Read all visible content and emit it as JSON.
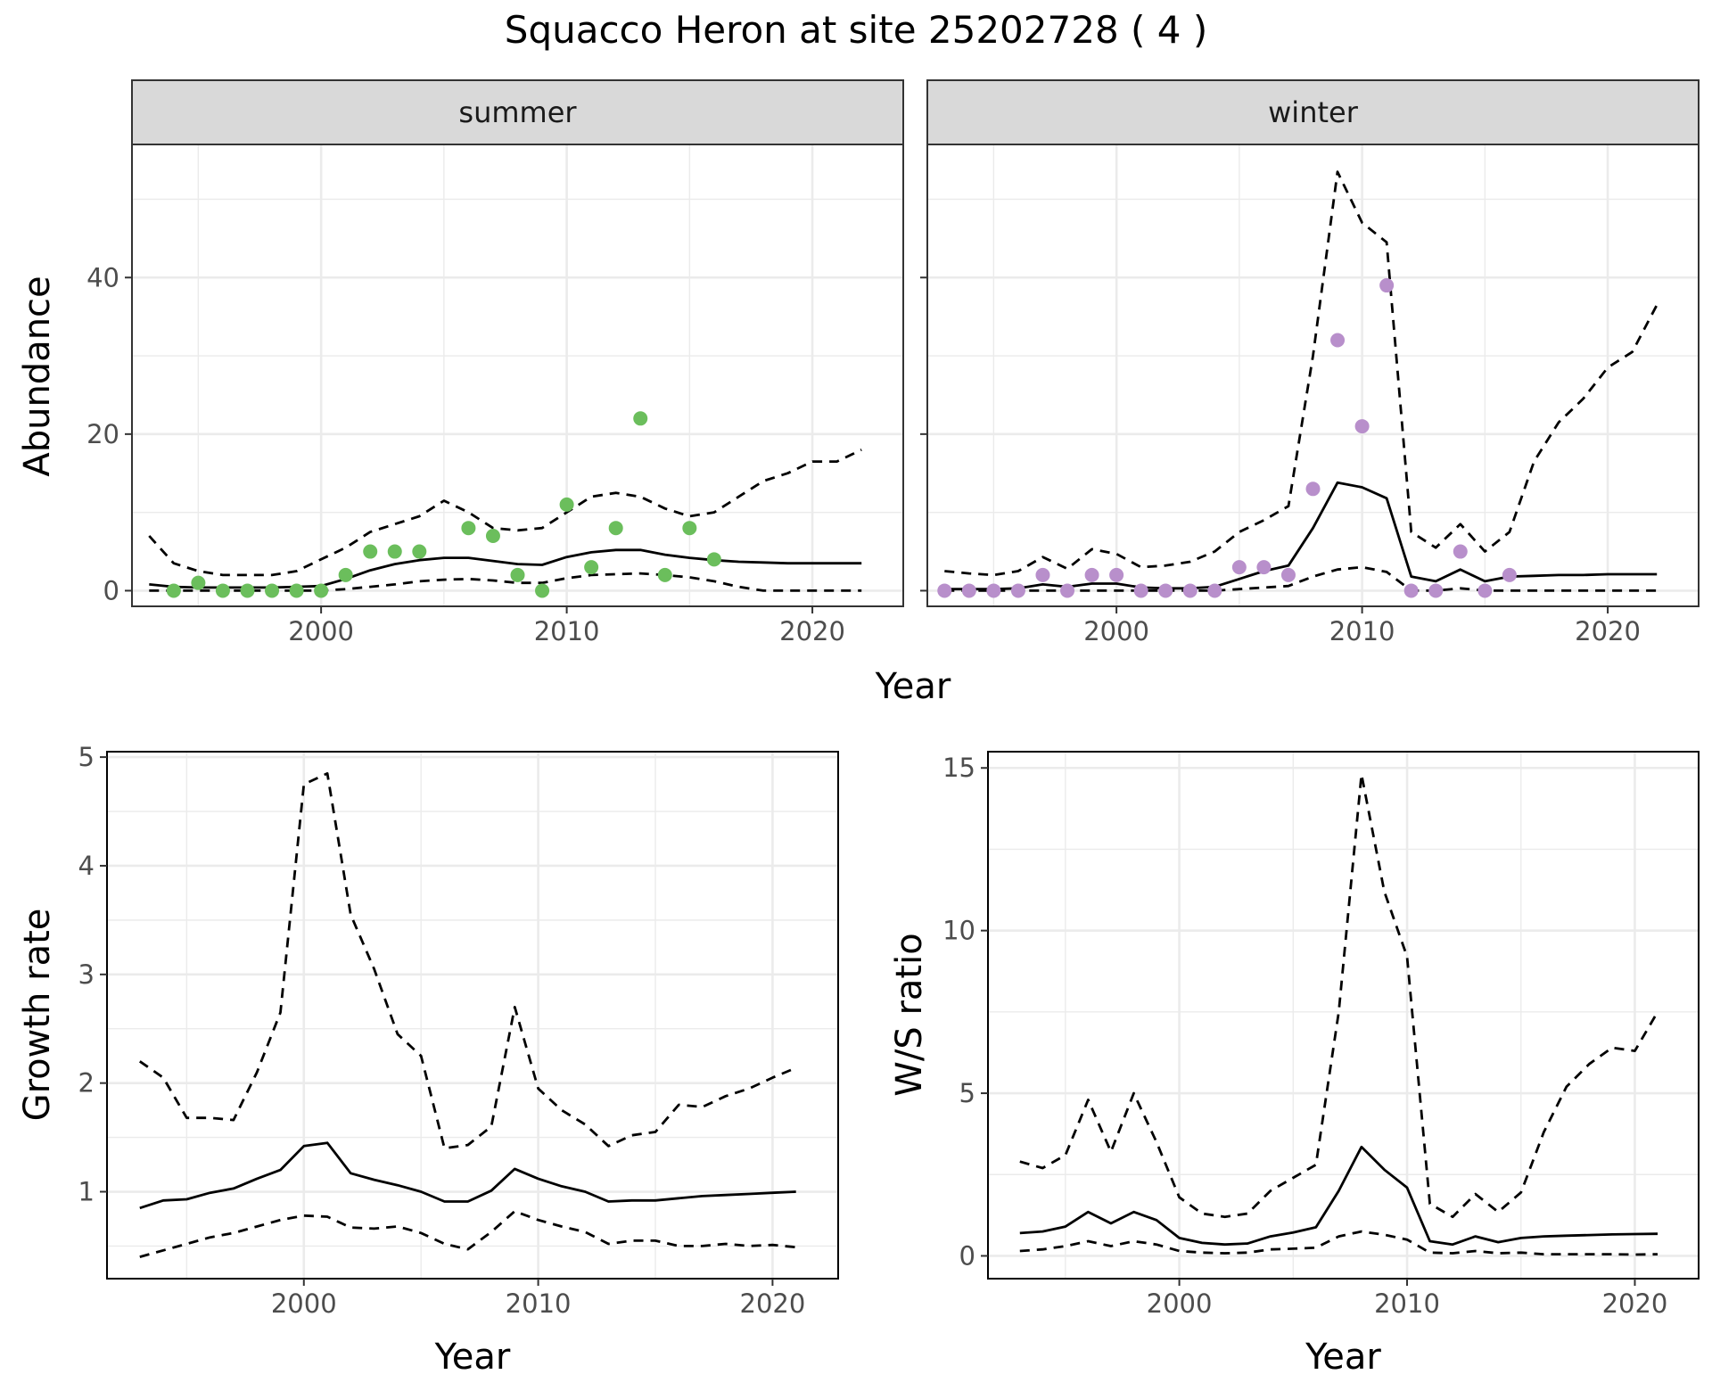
{
  "figure": {
    "title": "Squacco Heron at site 25202728 ( 4 )"
  },
  "colors": {
    "summer_points": "#6BBE5C",
    "winter_points": "#B88FCB",
    "line": "#000000",
    "grid": "#EBEBEB",
    "strip_bg": "#D9D9D9"
  },
  "chart_data": [
    {
      "type": "line",
      "panel": "summer",
      "facet_label": "summer",
      "xlabel": "Year",
      "ylabel": "Abundance",
      "xlim": [
        1992.3,
        2023.7
      ],
      "ylim": [
        -2,
        57
      ],
      "x_ticks": [
        2000,
        2010,
        2020
      ],
      "y_ticks": [
        0,
        20,
        40
      ],
      "grid": true,
      "series": [
        {
          "style": "solid",
          "x": [
            1993,
            1994,
            1995,
            1996,
            1997,
            1998,
            1999,
            2000,
            2001,
            2002,
            2003,
            2004,
            2005,
            2006,
            2007,
            2008,
            2009,
            2010,
            2011,
            2012,
            2013,
            2014,
            2015,
            2016,
            2017,
            2018,
            2019,
            2020,
            2021,
            2022
          ],
          "y": [
            0.8,
            0.5,
            0.4,
            0.4,
            0.4,
            0.4,
            0.5,
            0.6,
            1.5,
            2.6,
            3.4,
            3.9,
            4.2,
            4.2,
            3.8,
            3.4,
            3.3,
            4.3,
            4.9,
            5.2,
            5.2,
            4.6,
            4.2,
            3.9,
            3.7,
            3.6,
            3.5,
            3.5,
            3.5,
            3.5
          ]
        },
        {
          "style": "dashed",
          "x": [
            1993,
            1994,
            1995,
            1996,
            1997,
            1998,
            1999,
            2000,
            2001,
            2002,
            2003,
            2004,
            2005,
            2006,
            2007,
            2008,
            2009,
            2010,
            2011,
            2012,
            2013,
            2014,
            2015,
            2016,
            2017,
            2018,
            2019,
            2020,
            2021,
            2022
          ],
          "y": [
            7,
            3.5,
            2.5,
            2,
            2,
            2,
            2.5,
            4,
            5.5,
            7.5,
            8.5,
            9.5,
            11.5,
            10,
            8,
            7.7,
            8,
            10,
            12,
            12.5,
            12,
            10.5,
            9.5,
            10,
            12,
            14,
            15,
            16.5,
            16.5,
            18
          ]
        },
        {
          "style": "dashed",
          "x": [
            1993,
            1994,
            1995,
            1996,
            1997,
            1998,
            1999,
            2000,
            2001,
            2002,
            2003,
            2004,
            2005,
            2006,
            2007,
            2008,
            2009,
            2010,
            2011,
            2012,
            2013,
            2014,
            2015,
            2016,
            2017,
            2018,
            2019,
            2020,
            2021,
            2022
          ],
          "y": [
            0,
            0,
            0,
            0,
            0,
            0,
            0,
            0,
            0.2,
            0.5,
            0.8,
            1.2,
            1.4,
            1.5,
            1.3,
            1.0,
            1.0,
            1.6,
            2.0,
            2.1,
            2.2,
            2.0,
            1.7,
            1.2,
            0.5,
            0,
            0,
            0,
            0,
            0
          ]
        }
      ],
      "points": {
        "x": [
          1994,
          1995,
          1996,
          1997,
          1998,
          1999,
          2000,
          2001,
          2002,
          2003,
          2004,
          2006,
          2007,
          2008,
          2009,
          2010,
          2011,
          2012,
          2013,
          2014,
          2015,
          2016
        ],
        "y": [
          0,
          1,
          0,
          0,
          0,
          0,
          0,
          2,
          5,
          5,
          5,
          8,
          7,
          2,
          0,
          11,
          3,
          8,
          22,
          2,
          8,
          4
        ]
      }
    },
    {
      "type": "line",
      "panel": "winter",
      "facet_label": "winter",
      "xlabel": "Year",
      "ylabel": "Abundance",
      "xlim": [
        1992.3,
        2023.7
      ],
      "ylim": [
        -2,
        57
      ],
      "x_ticks": [
        2000,
        2010,
        2020
      ],
      "y_ticks": [
        0,
        20,
        40
      ],
      "grid": true,
      "series": [
        {
          "style": "solid",
          "x": [
            1993,
            1994,
            1995,
            1996,
            1997,
            1998,
            1999,
            2000,
            2001,
            2002,
            2003,
            2004,
            2005,
            2006,
            2007,
            2008,
            2009,
            2010,
            2011,
            2012,
            2013,
            2014,
            2015,
            2016,
            2017,
            2018,
            2019,
            2020,
            2021,
            2022
          ],
          "y": [
            0.2,
            0.2,
            0.2,
            0.3,
            0.8,
            0.5,
            0.9,
            0.9,
            0.4,
            0.3,
            0.3,
            0.5,
            1.5,
            2.5,
            3.2,
            8,
            13.8,
            13.2,
            11.8,
            1.8,
            1.2,
            2.7,
            1.2,
            1.8,
            1.9,
            2.0,
            2.0,
            2.1,
            2.1,
            2.1
          ]
        },
        {
          "style": "dashed",
          "x": [
            1993,
            1994,
            1995,
            1996,
            1997,
            1998,
            1999,
            2000,
            2001,
            2002,
            2003,
            2004,
            2005,
            2006,
            2007,
            2008,
            2009,
            2010,
            2011,
            2012,
            2013,
            2014,
            2015,
            2016,
            2017,
            2018,
            2019,
            2020,
            2021,
            2022
          ],
          "y": [
            2.5,
            2.2,
            2.0,
            2.5,
            4.3,
            2.8,
            5.3,
            4.7,
            3,
            3.2,
            3.7,
            5,
            7.5,
            9,
            10.8,
            30,
            53.5,
            47,
            44.5,
            7.5,
            5.5,
            8.5,
            5,
            7.5,
            16.5,
            21.5,
            24.5,
            28.5,
            30.5,
            36.5
          ]
        },
        {
          "style": "dashed",
          "x": [
            1993,
            1994,
            1995,
            1996,
            1997,
            1998,
            1999,
            2000,
            2001,
            2002,
            2003,
            2004,
            2005,
            2006,
            2007,
            2008,
            2009,
            2010,
            2011,
            2012,
            2013,
            2014,
            2015,
            2016,
            2017,
            2018,
            2019,
            2020,
            2021,
            2022
          ],
          "y": [
            0,
            0,
            0,
            0,
            0,
            0,
            0,
            0,
            0,
            0,
            0,
            0,
            0.2,
            0.4,
            0.6,
            1.8,
            2.7,
            3.0,
            2.4,
            0,
            0,
            0.3,
            0,
            0,
            0,
            0,
            0,
            0,
            0,
            0
          ]
        }
      ],
      "points": {
        "x": [
          1993,
          1994,
          1995,
          1996,
          1997,
          1998,
          1999,
          2000,
          2001,
          2002,
          2003,
          2004,
          2005,
          2006,
          2007,
          2008,
          2009,
          2010,
          2011,
          2012,
          2013,
          2014,
          2015,
          2016
        ],
        "y": [
          0,
          0,
          0,
          0,
          2,
          0,
          2,
          2,
          0,
          0,
          0,
          0,
          3,
          3,
          2,
          13,
          32,
          21,
          39,
          0,
          0,
          5,
          0,
          2
        ]
      }
    },
    {
      "type": "line",
      "panel": "growth",
      "xlabel": "Year",
      "ylabel": "Growth rate",
      "xlim": [
        1991.6,
        2022.8
      ],
      "ylim": [
        0.2,
        5.05
      ],
      "x_ticks": [
        2000,
        2010,
        2020
      ],
      "y_ticks": [
        1,
        2,
        3,
        4,
        5
      ],
      "grid": true,
      "series": [
        {
          "style": "solid",
          "x": [
            1993,
            1994,
            1995,
            1996,
            1997,
            1998,
            1999,
            2000,
            2001,
            2002,
            2003,
            2004,
            2005,
            2006,
            2007,
            2008,
            2009,
            2010,
            2011,
            2012,
            2013,
            2014,
            2015,
            2016,
            2017,
            2018,
            2019,
            2020,
            2021
          ],
          "y": [
            0.85,
            0.92,
            0.93,
            0.99,
            1.03,
            1.12,
            1.2,
            1.42,
            1.45,
            1.17,
            1.11,
            1.06,
            1.0,
            0.91,
            0.91,
            1.01,
            1.21,
            1.12,
            1.05,
            1.0,
            0.91,
            0.92,
            0.92,
            0.94,
            0.96,
            0.97,
            0.98,
            0.99,
            1.0
          ]
        },
        {
          "style": "dashed",
          "x": [
            1993,
            1994,
            1995,
            1996,
            1997,
            1998,
            1999,
            2000,
            2001,
            2002,
            2003,
            2004,
            2005,
            2006,
            2007,
            2008,
            2009,
            2010,
            2011,
            2012,
            2013,
            2014,
            2015,
            2016,
            2017,
            2018,
            2019,
            2020,
            2021
          ],
          "y": [
            2.2,
            2.05,
            1.68,
            1.68,
            1.66,
            2.1,
            2.65,
            4.75,
            4.85,
            3.55,
            3.05,
            2.45,
            2.25,
            1.4,
            1.43,
            1.6,
            2.7,
            1.95,
            1.75,
            1.62,
            1.42,
            1.52,
            1.55,
            1.8,
            1.78,
            1.88,
            1.95,
            2.05,
            2.14
          ]
        },
        {
          "style": "dashed",
          "x": [
            1993,
            1994,
            1995,
            1996,
            1997,
            1998,
            1999,
            2000,
            2001,
            2002,
            2003,
            2004,
            2005,
            2006,
            2007,
            2008,
            2009,
            2010,
            2011,
            2012,
            2013,
            2014,
            2015,
            2016,
            2017,
            2018,
            2019,
            2020,
            2021
          ],
          "y": [
            0.4,
            0.46,
            0.52,
            0.58,
            0.62,
            0.68,
            0.74,
            0.78,
            0.77,
            0.67,
            0.66,
            0.68,
            0.62,
            0.52,
            0.47,
            0.63,
            0.82,
            0.74,
            0.68,
            0.63,
            0.52,
            0.55,
            0.55,
            0.5,
            0.5,
            0.52,
            0.5,
            0.51,
            0.49
          ]
        }
      ]
    },
    {
      "type": "line",
      "panel": "ws",
      "xlabel": "Year",
      "ylabel": "W/S ratio",
      "xlim": [
        1991.6,
        2022.8
      ],
      "ylim": [
        -0.7,
        15.5
      ],
      "x_ticks": [
        2000,
        2010,
        2020
      ],
      "y_ticks": [
        0,
        5,
        10,
        15
      ],
      "grid": true,
      "series": [
        {
          "style": "solid",
          "x": [
            1993,
            1994,
            1995,
            1996,
            1997,
            1998,
            1999,
            2000,
            2001,
            2002,
            2003,
            2004,
            2005,
            2006,
            2007,
            2008,
            2009,
            2010,
            2011,
            2012,
            2013,
            2014,
            2015,
            2016,
            2017,
            2018,
            2019,
            2020,
            2021
          ],
          "y": [
            0.7,
            0.75,
            0.9,
            1.35,
            1.0,
            1.35,
            1.1,
            0.55,
            0.4,
            0.35,
            0.38,
            0.6,
            0.72,
            0.88,
            2.0,
            3.35,
            2.65,
            2.1,
            0.45,
            0.35,
            0.6,
            0.42,
            0.55,
            0.6,
            0.62,
            0.64,
            0.66,
            0.67,
            0.68
          ]
        },
        {
          "style": "dashed",
          "x": [
            1993,
            1994,
            1995,
            1996,
            1997,
            1998,
            1999,
            2000,
            2001,
            2002,
            2003,
            2004,
            2005,
            2006,
            2007,
            2008,
            2009,
            2010,
            2011,
            2012,
            2013,
            2014,
            2015,
            2016,
            2017,
            2018,
            2019,
            2020,
            2021
          ],
          "y": [
            2.9,
            2.7,
            3.1,
            4.8,
            3.2,
            5.0,
            3.5,
            1.8,
            1.3,
            1.2,
            1.3,
            2.0,
            2.4,
            2.8,
            7.5,
            14.8,
            11.2,
            9.2,
            1.6,
            1.2,
            1.9,
            1.35,
            1.95,
            3.8,
            5.2,
            5.9,
            6.4,
            6.3,
            7.5
          ]
        },
        {
          "style": "dashed",
          "x": [
            1993,
            1994,
            1995,
            1996,
            1997,
            1998,
            1999,
            2000,
            2001,
            2002,
            2003,
            2004,
            2005,
            2006,
            2007,
            2008,
            2009,
            2010,
            2011,
            2012,
            2013,
            2014,
            2015,
            2016,
            2017,
            2018,
            2019,
            2020,
            2021
          ],
          "y": [
            0.15,
            0.2,
            0.3,
            0.45,
            0.3,
            0.45,
            0.35,
            0.15,
            0.1,
            0.08,
            0.1,
            0.2,
            0.22,
            0.25,
            0.6,
            0.75,
            0.65,
            0.5,
            0.1,
            0.08,
            0.15,
            0.08,
            0.1,
            0.05,
            0.05,
            0.05,
            0.05,
            0.04,
            0.05
          ]
        }
      ]
    }
  ],
  "shared_xlabel": "Year"
}
